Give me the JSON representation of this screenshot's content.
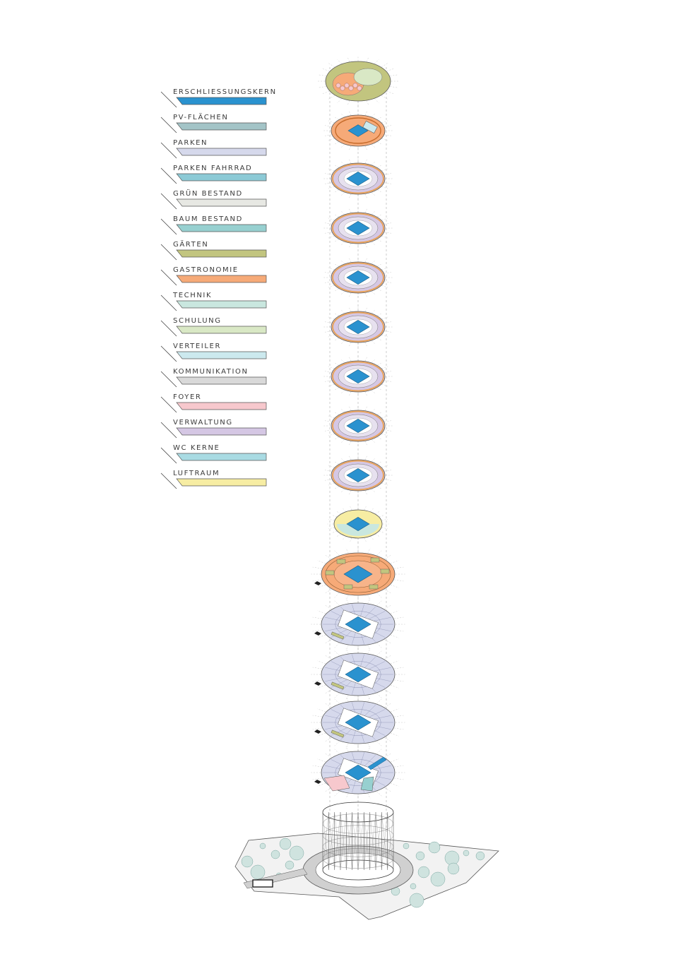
{
  "legend": {
    "items": [
      {
        "label": "ERSCHLIESSUNGSKERN",
        "color": "#2a92cf"
      },
      {
        "label": "PV-FLÄCHEN",
        "color": "#a3c4c7"
      },
      {
        "label": "PARKEN",
        "color": "#d6d9ec"
      },
      {
        "label": "PARKEN FAHRRAD",
        "color": "#8ccad6"
      },
      {
        "label": "GRÜN BESTAND",
        "color": "#e7e8e3"
      },
      {
        "label": "BAUM BESTAND",
        "color": "#97d0d0"
      },
      {
        "label": "GÄRTEN",
        "color": "#c2c57f"
      },
      {
        "label": "GASTRONOMIE",
        "color": "#f6aa78"
      },
      {
        "label": "TECHNIK",
        "color": "#c9e7df"
      },
      {
        "label": "SCHULUNG",
        "color": "#d9e8c5"
      },
      {
        "label": "VERTEILER",
        "color": "#cce9ee"
      },
      {
        "label": "KOMMUNIKATION",
        "color": "#d9d9d9"
      },
      {
        "label": "FOYER",
        "color": "#f7c8cd"
      },
      {
        "label": "VERWALTUNG",
        "color": "#d5c7e4"
      },
      {
        "label": "WC KERNE",
        "color": "#a9dbe3"
      },
      {
        "label": "LUFTRAUM",
        "color": "#f7eda3"
      }
    ]
  },
  "floors": [
    {
      "type": "roof-garden",
      "fill": "#c2c57f"
    },
    {
      "type": "pv",
      "fill": "#f6aa78"
    },
    {
      "type": "office",
      "fill": "#d5c7e4"
    },
    {
      "type": "office",
      "fill": "#d5c7e4"
    },
    {
      "type": "office",
      "fill": "#d5c7e4"
    },
    {
      "type": "office",
      "fill": "#d5c7e4"
    },
    {
      "type": "office",
      "fill": "#d5c7e4"
    },
    {
      "type": "office",
      "fill": "#d5c7e4"
    },
    {
      "type": "office",
      "fill": "#d5c7e4"
    },
    {
      "type": "void",
      "fill": "#f7eda3"
    },
    {
      "type": "gastro",
      "fill": "#f6aa78"
    },
    {
      "type": "parking",
      "fill": "#d6d9ec"
    },
    {
      "type": "parking",
      "fill": "#d6d9ec"
    },
    {
      "type": "parking",
      "fill": "#d6d9ec"
    },
    {
      "type": "ground",
      "fill": "#d6d9ec"
    }
  ],
  "colors": {
    "core": "#2a92cf",
    "ring": "#e8a35a",
    "outline": "#555555",
    "site": "#f2f2f2",
    "tree": "#cfe3df"
  }
}
